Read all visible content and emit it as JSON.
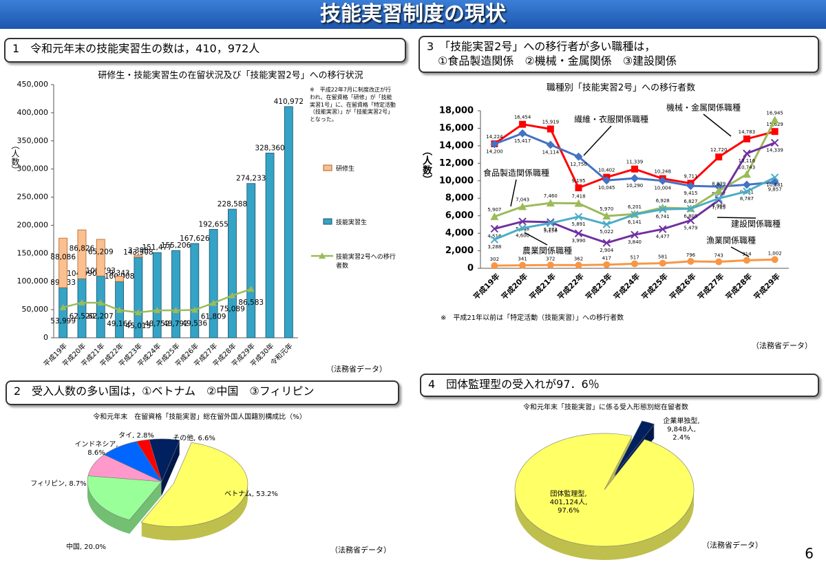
{
  "title": "技能実習制度の現状",
  "page_number": "6",
  "sections": [
    {
      "heading": "1　令和元年末の技能実習生の数は，410，972人"
    },
    {
      "heading": "3　「技能実習2号」への移行者が多い職種は，\n　①食品製造関係　②機械・金属関係　③建設関係"
    },
    {
      "heading": "2　受入人数の多い国は，①ベトナム　②中国　③フィリピン"
    },
    {
      "heading": "4　団体監理型の受入れが97．6％"
    }
  ],
  "chart_data": [
    {
      "type": "bar",
      "title": "研修生・技能実習生の在留状況及び「技能実習2号」への移行状況",
      "y_label": "（人数）",
      "note": "※　平成22年7月に制度改正が行われ、在留資格「研修」が「技能実習1号」に、在留資格「特定活動（技能実習）」が「技能実習2号」となった。",
      "source": "（法務省データ）",
      "categories": [
        "平成19年",
        "平成20年",
        "平成21年",
        "平成22年",
        "平成23年",
        "平成24年",
        "平成25年",
        "平成26年",
        "平成27年",
        "平成28年",
        "平成29年",
        "平成30年",
        "令和元年"
      ],
      "series": [
        {
          "name": "研修生",
          "color": "#fac090",
          "values": [
            88086,
            86826,
            65209,
            9343,
            3388,
            null,
            null,
            null,
            null,
            null,
            null,
            null,
            null
          ],
          "value_labels": [
            "88,086",
            "86,826",
            "65,209",
            "9,343",
            "3,388",
            null,
            null,
            null,
            null,
            null,
            null,
            null,
            null
          ]
        },
        {
          "name": "技能実習生",
          "color": "#34a3c6",
          "values": [
            89033,
            104990,
            109793,
            100008,
            143308,
            151477,
            155206,
            167626,
            192655,
            228588,
            274233,
            328360,
            410972
          ],
          "value_labels": [
            "89,033",
            "104,990",
            "109,793",
            "100,008",
            "143,308",
            "151,477",
            "155,206",
            "167,626",
            "192,655",
            "228,588",
            "274,233",
            "328,360",
            "410,972"
          ]
        },
        {
          "name": "技能実習2号への移行者数",
          "type": "line",
          "color": "#9bbb59",
          "values": [
            53999,
            62520,
            62207,
            49166,
            45013,
            48752,
            48792,
            49536,
            61809,
            75089,
            86583,
            null,
            null
          ],
          "value_labels": [
            "53,999",
            "62,520",
            "62,207",
            "49,166",
            "45,013",
            "48,752",
            "48,792",
            "49,536",
            "61,809",
            "75,089",
            "86,583",
            null,
            null
          ]
        }
      ],
      "ylim": [
        0,
        450000
      ],
      "yticks": [
        0,
        {
          "value": 50000,
          "label": "50,000"
        },
        {
          "value": 100000,
          "label": "100,000"
        },
        {
          "value": 150000,
          "label": "150,000"
        },
        {
          "value": 200000,
          "label": "200,000"
        },
        {
          "value": 250000,
          "label": "250,000"
        },
        {
          "value": 300000,
          "label": "300,000"
        },
        {
          "value": 350000,
          "label": "350,000"
        },
        {
          "value": 400000,
          "label": "400,000"
        },
        {
          "value": 450000,
          "label": "450,000"
        }
      ]
    },
    {
      "type": "line",
      "title": "職種別「技能実習2号」への移行者数",
      "y_label": "（人数）",
      "note": "※　平成21年以前は「特定活動（技能実習）」への移行者数",
      "source": "（法務省データ）",
      "categories": [
        "平成19年",
        "平成20年",
        "平成21年",
        "平成22年",
        "平成23年",
        "平成24年",
        "平成25年",
        "平成26年",
        "平成27年",
        "平成28年",
        "平成29年"
      ],
      "series": [
        {
          "name": "機械・金属関係職種",
          "color": "#ff0000",
          "marker": "square",
          "values": [
            14224,
            16454,
            15919,
            9195,
            10402,
            11339,
            10248,
            9711,
            12720,
            14783,
            15629
          ],
          "value_labels": [
            "14,224",
            "16,454",
            "15,919",
            "9,195",
            "10,402",
            "11,339",
            "10,248",
            "9,711",
            "12,720",
            "14,783",
            "15,629"
          ]
        },
        {
          "name": "繊維・衣服関係職種",
          "color": "#4472c4",
          "marker": "diamond",
          "values": [
            14200,
            15417,
            14114,
            12750,
            10045,
            10290,
            10004,
            9415,
            9337,
            9551,
            9857
          ],
          "value_labels": [
            "14,200",
            "15,417",
            "14,114",
            "12,750",
            "10,045",
            "10,290",
            "10,004",
            "9,415",
            "9,337",
            "9,551",
            "9,857"
          ]
        },
        {
          "name": "食品製造関係職種",
          "color": "#9bbb59",
          "marker": "triangle",
          "values": [
            5907,
            7043,
            7460,
            7418,
            5970,
            6201,
            6928,
            6827,
            8839,
            10743,
            16945
          ],
          "value_labels": [
            "5,907",
            "7,043",
            "7,460",
            "7,418",
            "5,970",
            "6,201",
            "6,928",
            "6,827",
            "8,839",
            "10,743",
            "16,945"
          ]
        },
        {
          "name": "建設関係職種",
          "color": "#7030a0",
          "marker": "x",
          "values": [
            4518,
            5348,
            5273,
            3990,
            2904,
            3840,
            4477,
            5479,
            7785,
            13116,
            14339
          ],
          "value_labels": [
            "4,518",
            "5,348",
            "5,273",
            "3,990",
            "2,904",
            "3,840",
            "4,477",
            "5,479",
            "7,785",
            "13,116",
            "14,339"
          ]
        },
        {
          "name": "農業関係職種",
          "color": "#4bacc6",
          "marker": "x",
          "values": [
            3288,
            4600,
            5156,
            5891,
            5022,
            6141,
            6741,
            6805,
            7988,
            8787,
            10381
          ],
          "value_labels": [
            "3,288",
            "4,600",
            "5,156",
            "5,891",
            "5,022",
            "6,141",
            "6,741",
            "6,805",
            "7,988",
            "8,787",
            "10,381"
          ]
        },
        {
          "name": "漁業関係職種",
          "color": "#f79646",
          "marker": "circle",
          "values": [
            302,
            341,
            372,
            362,
            417,
            517,
            581,
            796,
            743,
            914,
            1002
          ],
          "value_labels": [
            "302",
            "341",
            "372",
            "362",
            "417",
            "517",
            "581",
            "796",
            "743",
            "914",
            "1,002"
          ]
        }
      ],
      "ylim": [
        0,
        18000
      ],
      "yticks": [
        0,
        {
          "value": 2000,
          "label": "2,000"
        },
        {
          "value": 4000,
          "label": "4,000"
        },
        {
          "value": 6000,
          "label": "6,000"
        },
        {
          "value": 8000,
          "label": "8,000"
        },
        {
          "value": 10000,
          "label": "10,000"
        },
        {
          "value": 12000,
          "label": "12,000"
        },
        {
          "value": 14000,
          "label": "14,000"
        },
        {
          "value": 16000,
          "label": "16,000"
        },
        {
          "value": 18000,
          "label": "18,000"
        }
      ]
    },
    {
      "type": "pie",
      "title": "令和元年末　在留資格「技能実習」総在留外国人国籍別構成比（%）",
      "source": "（法務省データ）",
      "values": [
        53.2,
        20.0,
        8.7,
        8.6,
        2.8,
        6.6
      ],
      "value_labels": [
        "ベトナム, 53.2%",
        "中国, 20.0%",
        "フィリピン, 8.7%",
        "インドネシア,\n8.6%",
        "タイ, 2.8%",
        "その他, 6.6%"
      ],
      "colors": [
        "#ffff66",
        "#99ff99",
        "#ff99cc",
        "#0066ff",
        "#ff0000",
        "#002060"
      ]
    },
    {
      "type": "pie",
      "title": "令和元年末「技能実習」に係る受入形態別総在留者数",
      "source": "（法務省データ）",
      "values": [
        2.4,
        97.6
      ],
      "value_labels": [
        "企業単独型,\n9,848人,\n2.4%",
        "団体監理型,\n401,124人,\n97.6%"
      ],
      "colors": [
        "#002060",
        "#ffff66"
      ]
    }
  ]
}
